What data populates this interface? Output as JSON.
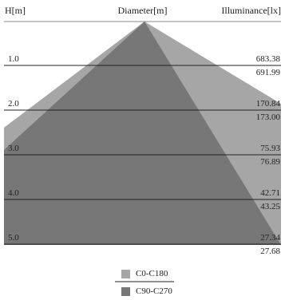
{
  "header": {
    "height_label": "H[m]",
    "diameter_label": "Diameter[m]",
    "illuminance_label": "Illuminance[lx]"
  },
  "rows": [
    {
      "height": "1.0",
      "c0": "683.38",
      "c90": "691.99"
    },
    {
      "height": "2.0",
      "c0": "170.84",
      "c90": "173.00"
    },
    {
      "height": "3.0",
      "c0": "75.93",
      "c90": "76.89"
    },
    {
      "height": "4.0",
      "c0": "42.71",
      "c90": "43.25"
    },
    {
      "height": "5.0",
      "c0": "27.34",
      "c90": "27.68"
    }
  ],
  "legend": [
    {
      "label": "C0-C180",
      "color": "#a6a6a6"
    },
    {
      "label": "C90-C270",
      "color": "#777777"
    }
  ],
  "colors": {
    "beam_light": "#a6a6a6",
    "beam_dark": "#777777",
    "grid_line": "#222222"
  }
}
